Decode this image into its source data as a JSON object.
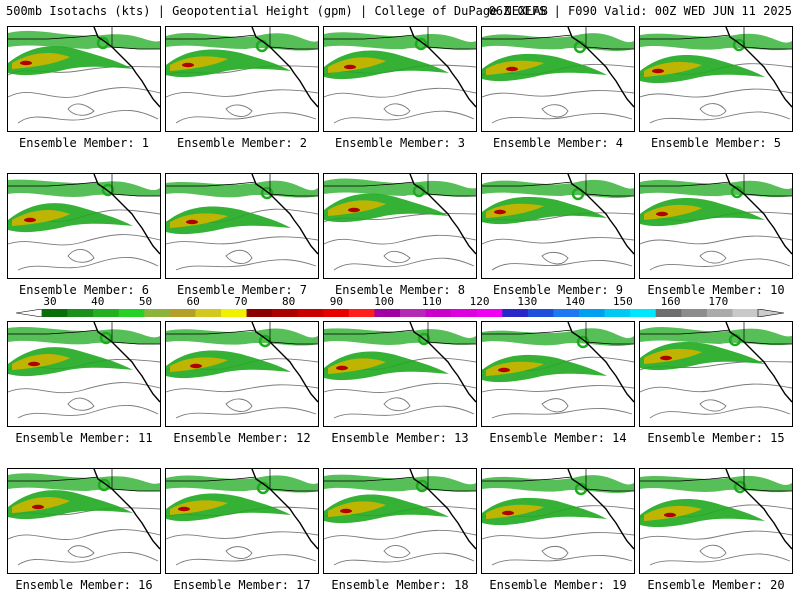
{
  "header": {
    "title_left": "500mb Isotachs (kts) | Geopotential Height (gpm) | College of DuPage NEXLAB",
    "title_right": "06Z GEFS | F090 Valid: 00Z WED JUN 11 2025"
  },
  "members": [
    "Ensemble Member: 1",
    "Ensemble Member: 2",
    "Ensemble Member: 3",
    "Ensemble Member: 4",
    "Ensemble Member: 5",
    "Ensemble Member: 6",
    "Ensemble Member: 7",
    "Ensemble Member: 8",
    "Ensemble Member: 9",
    "Ensemble Member: 10",
    "Ensemble Member: 11",
    "Ensemble Member: 12",
    "Ensemble Member: 13",
    "Ensemble Member: 14",
    "Ensemble Member: 15",
    "Ensemble Member: 16",
    "Ensemble Member: 17",
    "Ensemble Member: 18",
    "Ensemble Member: 19",
    "Ensemble Member: 20"
  ],
  "colorbar": {
    "labels": [
      "30",
      "40",
      "50",
      "60",
      "70",
      "80",
      "90",
      "100",
      "110",
      "120",
      "130",
      "140",
      "150",
      "160",
      "170"
    ],
    "label_values": [
      30,
      40,
      50,
      60,
      70,
      80,
      90,
      100,
      110,
      120,
      130,
      140,
      150,
      160,
      170
    ],
    "min": 30,
    "max": 170,
    "step": 5,
    "colors": [
      "#0a6e0a",
      "#1a8f1a",
      "#22b022",
      "#26d026",
      "#8cb43c",
      "#b4a028",
      "#d2c81e",
      "#f0f000",
      "#8c0000",
      "#aa0000",
      "#c80000",
      "#e60000",
      "#ff1e1e",
      "#a000a0",
      "#b428b4",
      "#c800c8",
      "#dc00dc",
      "#f000f0",
      "#2828c8",
      "#1e50dc",
      "#1e78f0",
      "#00a0f0",
      "#00c8f0",
      "#00e6ff",
      "#6e6e6e",
      "#8c8c8c",
      "#aaaaaa",
      "#c8c8c8"
    ]
  },
  "map_style": {
    "land_lines": "#000000",
    "height_contours": "#7a7a7a",
    "jet_low": "#1faa1f",
    "jet_high": "#c8b400",
    "jet_max": "#b00000"
  }
}
